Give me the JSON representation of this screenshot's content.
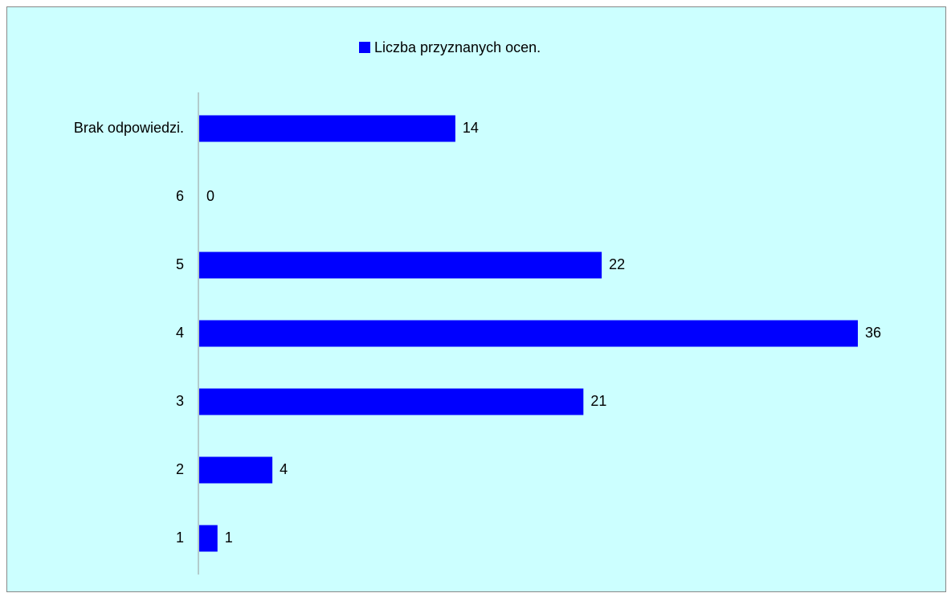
{
  "chart_data": {
    "type": "bar",
    "orientation": "horizontal",
    "categories": [
      "1",
      "2",
      "3",
      "4",
      "5",
      "6",
      "Brak odpowiedzi."
    ],
    "series": [
      {
        "name": "Liczba przyznanych ocen.",
        "color": "#0000ff",
        "values": [
          1,
          4,
          21,
          36,
          22,
          0,
          14
        ]
      }
    ],
    "legend": "top",
    "data_labels": true
  }
}
